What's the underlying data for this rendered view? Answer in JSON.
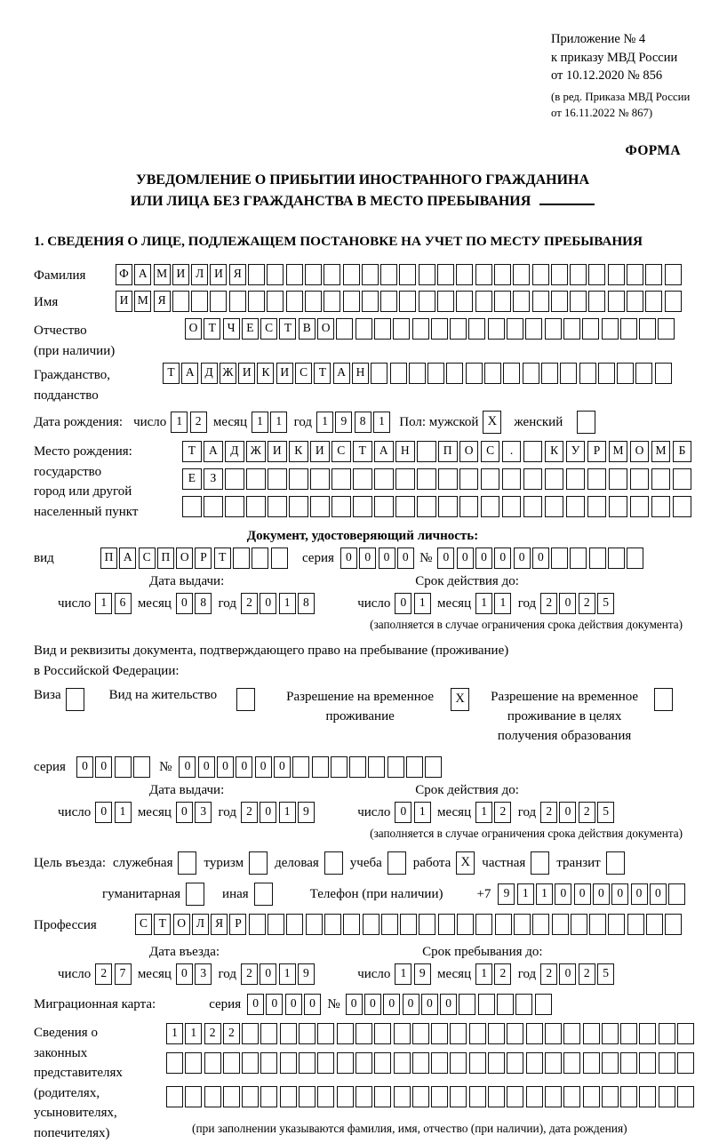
{
  "page": {
    "appendix": [
      "Приложение № 4",
      "к приказу МВД России",
      "от 10.12.2020 № 856"
    ],
    "amendment": [
      "(в ред. Приказа МВД России",
      "от 16.11.2022 № 867)"
    ],
    "form_label": "ФОРМА",
    "title1": "УВЕДОМЛЕНИЕ О ПРИБЫТИИ ИНОСТРАННОГО ГРАЖДАНИНА",
    "title2": "ИЛИ ЛИЦА БЕЗ ГРАЖДАНСТВА В МЕСТО ПРЕБЫВАНИЯ",
    "section1_heading": "1. СВЕДЕНИЯ О ЛИЦЕ, ПОДЛЕЖАЩЕМ ПОСТАНОВКЕ НА УЧЕТ ПО МЕСТУ ПРЕБЫВАНИЯ"
  },
  "labels": {
    "day": "число",
    "month": "месяц",
    "year": "год",
    "series": "серия",
    "number": "№",
    "issue_date": "Дата выдачи:",
    "valid_until": "Срок действия до:",
    "entry_date": "Дата въезда:",
    "stay_until": "Срок пребывания до:",
    "limit_note": "(заполняется в случае ограничения срока действия документа)"
  },
  "fields": {
    "surname": {
      "label": "Фамилия",
      "value": "ФАМИЛИЯ"
    },
    "name": {
      "label": "Имя",
      "value": "ИМЯ"
    },
    "patronymic": {
      "label": "Отчество",
      "sublabel": "(при наличии)",
      "value": "ОТЧЕСТВО"
    },
    "citizenship": {
      "label": "Гражданство,",
      "sublabel": "подданство",
      "value": "ТАДЖИКИСТАН"
    },
    "birth_date": {
      "label": "Дата рождения:",
      "day": "12",
      "month": "11",
      "year": "1981"
    },
    "sex": {
      "label": "Пол: мужской",
      "male_mark": "X",
      "female_label": "женский",
      "female_mark": ""
    },
    "birth_place": {
      "label1": "Место рождения:",
      "label2": "государство",
      "label3": "город или другой",
      "label4": "населенный пункт",
      "row1": "ТАДЖИКИСТАН ПОС. КУРМОМБ",
      "row2": "ЕЗ",
      "row3": ""
    },
    "identity_doc": {
      "heading": "Документ, удостоверяющий личность:",
      "kind_label": "вид",
      "kind": "ПАСПОРТ",
      "series": "0000",
      "number": "000000",
      "issue": {
        "day": "16",
        "month": "08",
        "year": "2018"
      },
      "valid": {
        "day": "01",
        "month": "11",
        "year": "2025"
      }
    },
    "residence_doc": {
      "intro1": "Вид и реквизиты документа, подтверждающего право на пребывание (проживание)",
      "intro2": "в Российской Федерации:",
      "visa": {
        "label": "Виза",
        "mark": ""
      },
      "residence_permit": {
        "label": "Вид на жительство",
        "mark": ""
      },
      "temp_residence": {
        "label": "Разрешение на временное проживание",
        "mark": "X"
      },
      "temp_residence_edu": {
        "label": "Разрешение на временное проживание в целях получения образования",
        "mark": ""
      },
      "series": "00",
      "number": "000000",
      "issue": {
        "day": "01",
        "month": "03",
        "year": "2019"
      },
      "valid": {
        "day": "01",
        "month": "12",
        "year": "2025"
      }
    },
    "purpose": {
      "label": "Цель въезда:",
      "options": [
        {
          "label": "служебная",
          "mark": ""
        },
        {
          "label": "туризм",
          "mark": ""
        },
        {
          "label": "деловая",
          "mark": ""
        },
        {
          "label": "учеба",
          "mark": ""
        },
        {
          "label": "работа",
          "mark": "X"
        },
        {
          "label": "частная",
          "mark": ""
        },
        {
          "label": "транзит",
          "mark": ""
        },
        {
          "label": "гуманитарная",
          "mark": ""
        },
        {
          "label": "иная",
          "mark": ""
        }
      ]
    },
    "phone": {
      "label": "Телефон (при наличии)",
      "prefix": "+7",
      "value": "911000000"
    },
    "profession": {
      "label": "Профессия",
      "value": "СТОЛЯР"
    },
    "entry": {
      "day": "27",
      "month": "03",
      "year": "2019"
    },
    "stay": {
      "day": "19",
      "month": "12",
      "year": "2025"
    },
    "migration_card": {
      "label": "Миграционная карта:",
      "series": "0000",
      "number": "000000"
    },
    "representatives": {
      "label_lines": [
        "Сведения о",
        "законных",
        "представителях",
        "(родителях,",
        "усыновителях,",
        "попечителях)"
      ],
      "row1": "1122",
      "row2": "",
      "row3": "",
      "note": "(при заполнении указываются фамилия, имя, отчество (при наличии), дата рождения)"
    }
  }
}
